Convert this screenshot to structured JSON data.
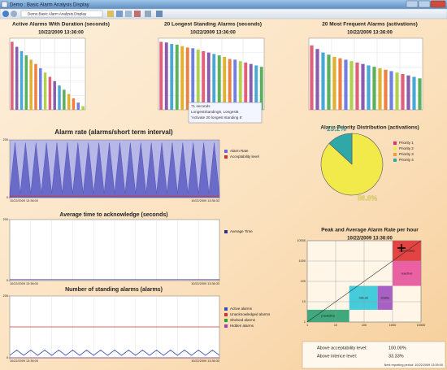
{
  "window": {
    "title": "Demo : Basic Alarm Analysis Display",
    "toolbar_display": "Demo.Basic Alarm Analysis Display"
  },
  "tooltip": {
    "lines": [
      "71 seconds",
      "LongestStanding6, Longest6",
      "'Activate 20 longest standing 6'"
    ]
  },
  "status": {
    "rows": [
      {
        "label": "Above acceptability level:",
        "value": "100.00%"
      },
      {
        "label": "Above intence level:",
        "value": "33.33%"
      }
    ],
    "next": "Next reporting period: 10/22/2009 13:39:00"
  },
  "chart_data": [
    {
      "type": "bar",
      "title": "Active Alarms With Duration (seconds)",
      "subtitle": "10/22/2009 13:36:00",
      "values": [
        95,
        88,
        82,
        76,
        70,
        64,
        58,
        52,
        46,
        40,
        34,
        28,
        22,
        16,
        10,
        5
      ],
      "ylim": [
        0,
        100
      ],
      "grid": true,
      "palette": [
        "#e0607a",
        "#8a5cb0",
        "#4aa8d8",
        "#5cb05c",
        "#e0b030",
        "#f08040",
        "#7080e0",
        "#b0d050"
      ]
    },
    {
      "type": "bar",
      "title": "20 Longest Standing Alarms (seconds)",
      "subtitle": "10/22/2009 13:36:00",
      "values": [
        95,
        94,
        92,
        91,
        89,
        87,
        86,
        84,
        82,
        80,
        78,
        76,
        74,
        71,
        70,
        68,
        66,
        64,
        62,
        60
      ],
      "ylim": [
        0,
        100
      ],
      "grid": true,
      "palette": [
        "#e0607a",
        "#8a5cb0",
        "#4aa8d8",
        "#5cb05c",
        "#e0b030",
        "#f08040",
        "#7080e0",
        "#b0d050"
      ]
    },
    {
      "type": "bar",
      "title": "20 Most Frequent Alarms (activations)",
      "subtitle": "10/22/2009 13:36:00",
      "values": [
        90,
        85,
        80,
        77,
        74,
        72,
        70,
        68,
        66,
        64,
        62,
        60,
        58,
        56,
        54,
        52,
        50,
        48,
        46,
        44
      ],
      "ylim": [
        0,
        100
      ],
      "grid": true,
      "palette": [
        "#e0607a",
        "#8a5cb0",
        "#4aa8d8",
        "#5cb05c",
        "#e0b030",
        "#f08040",
        "#7080e0",
        "#b0d050"
      ]
    },
    {
      "type": "pie",
      "title": "Alarm Priority Distribution (activations)",
      "categories": [
        "Priority 1",
        "Priority 2",
        "Priority 3",
        "Priority 4"
      ],
      "values": [
        0,
        86.8,
        0,
        13.2
      ],
      "value_labels": [
        null,
        "86.8%",
        null,
        "13.2%"
      ],
      "colors": [
        "#e0306a",
        "#f2ea4a",
        "#e8a040",
        "#30a8a8"
      ]
    },
    {
      "type": "area",
      "title": "Alarm rate (alarms/short term interval)",
      "x": [
        0,
        1,
        2,
        3,
        4,
        5,
        6,
        7,
        8,
        9,
        10,
        11,
        12,
        13,
        14,
        15,
        16,
        17,
        18,
        19,
        20,
        21,
        22,
        23,
        24,
        25,
        26,
        27,
        28,
        29,
        30,
        31,
        32,
        33,
        34,
        35,
        36,
        37,
        38,
        39,
        40
      ],
      "series": [
        {
          "name": "Alarm Rate",
          "color": "#6a6ac8",
          "values": [
            15,
            190,
            15,
            190,
            15,
            190,
            15,
            190,
            15,
            190,
            15,
            190,
            15,
            190,
            15,
            190,
            15,
            190,
            15,
            190,
            15,
            190,
            15,
            190,
            15,
            190,
            15,
            190,
            15,
            190,
            15,
            190,
            15,
            190,
            15,
            190,
            15,
            190,
            15,
            190,
            15
          ]
        },
        {
          "name": "Acceptability level",
          "color": "#d03030",
          "values": [
            5,
            5,
            5,
            5,
            5,
            5,
            5,
            5,
            5,
            5,
            5,
            5,
            5,
            5,
            5,
            5,
            5,
            5,
            5,
            5,
            5,
            5,
            5,
            5,
            5,
            5,
            5,
            5,
            5,
            5,
            5,
            5,
            5,
            5,
            5,
            5,
            5,
            5,
            5,
            5,
            5
          ]
        }
      ],
      "xlim": [
        0,
        40
      ],
      "xticks": [
        {
          "value": 0,
          "label": "10/22/2009 13:36:00"
        },
        {
          "value": 40,
          "label": "10/22/2009 13:36:33"
        }
      ],
      "ylim": [
        0,
        200
      ],
      "yticks": [
        0,
        200
      ],
      "background": "#b8b8e8"
    },
    {
      "type": "line",
      "title": "Average time to acknowledge (seconds)",
      "x": [
        0,
        1,
        2,
        3,
        4,
        5,
        6,
        7,
        8,
        9,
        10,
        11,
        12,
        13,
        14,
        15,
        16,
        17,
        18,
        19,
        20,
        21,
        22,
        23,
        24,
        25,
        26,
        27,
        28,
        29,
        30
      ],
      "series": [
        {
          "name": "Average Time",
          "color": "#303090",
          "values": [
            3,
            3,
            3,
            3,
            3,
            3,
            3,
            3,
            3,
            3,
            3,
            3,
            3,
            3,
            3,
            3,
            3,
            3,
            3,
            3,
            3,
            3,
            3,
            3,
            3,
            3,
            3,
            3,
            3,
            3,
            3
          ]
        }
      ],
      "xlim": [
        0,
        30
      ],
      "xticks": [
        {
          "value": 0,
          "label": "10/22/2009 13:36:00"
        },
        {
          "value": 30,
          "label": "10/22/2009 13:36:33"
        }
      ],
      "ylim": [
        0,
        200
      ],
      "yticks": [
        0,
        200
      ],
      "background": "#ffffff",
      "grid": true
    },
    {
      "type": "line",
      "title": "Number of standing alarms (alarms)",
      "x": [
        0,
        1,
        2,
        3,
        4,
        5,
        6,
        7,
        8,
        9,
        10,
        11,
        12,
        13,
        14,
        15,
        16,
        17,
        18,
        19,
        20,
        21,
        22,
        23,
        24,
        25,
        26,
        27,
        28,
        29,
        30
      ],
      "series": [
        {
          "name": "Active alarms",
          "color": "#3050b0",
          "values": [
            8,
            25,
            8,
            25,
            8,
            25,
            8,
            25,
            8,
            25,
            8,
            25,
            8,
            25,
            8,
            25,
            8,
            25,
            8,
            25,
            8,
            25,
            8,
            25,
            8,
            25,
            8,
            25,
            8,
            25,
            8
          ]
        },
        {
          "name": "Unacknowledged alarms",
          "color": "#d03030",
          "values": [
            100,
            100,
            100,
            100,
            100,
            100,
            100,
            100,
            100,
            100,
            100,
            100,
            100,
            100,
            100,
            100,
            100,
            100,
            100,
            100,
            100,
            100,
            100,
            100,
            100,
            100,
            100,
            100,
            100,
            100,
            100
          ]
        },
        {
          "name": "Shelved alarms",
          "color": "#30a030",
          "values": [
            0,
            0,
            0,
            0,
            0,
            0,
            0,
            0,
            0,
            0,
            0,
            0,
            0,
            0,
            0,
            0,
            0,
            0,
            0,
            0,
            0,
            0,
            0,
            0,
            0,
            0,
            0,
            0,
            0,
            0,
            0
          ]
        },
        {
          "name": "Hidden alarms",
          "color": "#a040c0",
          "values": [
            0,
            0,
            0,
            0,
            0,
            0,
            0,
            0,
            0,
            0,
            0,
            0,
            0,
            0,
            0,
            0,
            0,
            0,
            0,
            0,
            0,
            0,
            0,
            0,
            0,
            0,
            0,
            0,
            0,
            0,
            0
          ]
        }
      ],
      "xlim": [
        0,
        30
      ],
      "xticks": [
        {
          "value": 0,
          "label": "10/22/2009 13:36:00"
        },
        {
          "value": 30,
          "label": "10/22/2009 13:36:33"
        }
      ],
      "ylim": [
        0,
        200
      ],
      "yticks": [
        0,
        200
      ],
      "background": "#ffffff",
      "grid": true
    },
    {
      "type": "heatmap",
      "title": "Peak and Average Alarm Rate per hour",
      "subtitle": "10/22/2009 13:36:00",
      "log": true,
      "xlim": [
        1,
        10000
      ],
      "ylim": [
        1,
        10000
      ],
      "xticks": [
        1,
        10,
        100,
        1000,
        10000
      ],
      "yticks": [
        1,
        10,
        100,
        1000,
        10000
      ],
      "cells": [
        {
          "label": "predictive",
          "color": "#2aa070",
          "x": [
            1,
            30
          ],
          "y": [
            1,
            4
          ]
        },
        {
          "label": "robust",
          "color": "#30c8d8",
          "x": [
            30,
            300
          ],
          "y": [
            4,
            60
          ]
        },
        {
          "label": "stable",
          "color": "#a050c0",
          "x": [
            300,
            1000
          ],
          "y": [
            4,
            60
          ]
        },
        {
          "label": "reactive",
          "color": "#e8509a",
          "x": [
            1000,
            10000
          ],
          "y": [
            60,
            1000
          ]
        },
        {
          "label": "overloaded",
          "color": "#e03030",
          "x": [
            1000,
            10000
          ],
          "y": [
            1000,
            10000
          ]
        }
      ]
    }
  ]
}
